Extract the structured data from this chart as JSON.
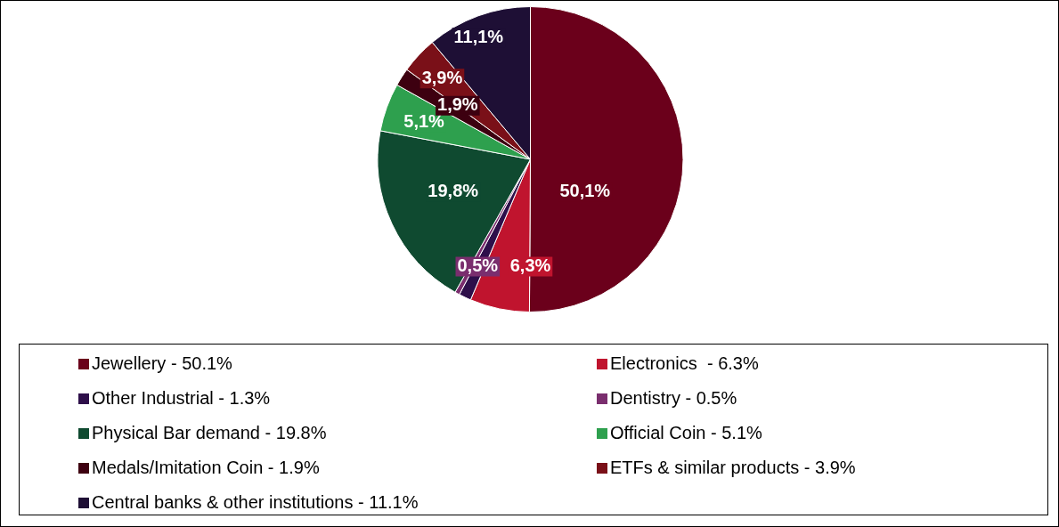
{
  "chart_data": {
    "type": "pie",
    "categories": [
      "Jewellery - 50.1%",
      "Electronics  - 6.3%",
      "Other Industrial - 1.3%",
      "Dentistry - 0.5%",
      "Physical Bar demand - 19.8%",
      "Official Coin - 5.1%",
      "Medals/Imitation Coin - 1.9%",
      "ETFs & similar products - 3.9%",
      "Central banks & other institutions - 11.1%"
    ],
    "values": [
      50.1,
      6.3,
      1.3,
      0.5,
      19.8,
      5.1,
      1.9,
      3.9,
      11.1
    ],
    "colors": [
      "#6b001b",
      "#c0142e",
      "#2e0f4a",
      "#7a2e6e",
      "#0f4a30",
      "#2ea04e",
      "#3d0010",
      "#7a1018",
      "#1e0f35"
    ],
    "value_labels": [
      "50,1%",
      "6,3%",
      null,
      "0,5%",
      "19,8%",
      "5,1%",
      "1,9%",
      "3,9%",
      "11,1%"
    ],
    "legend": "bottom"
  }
}
